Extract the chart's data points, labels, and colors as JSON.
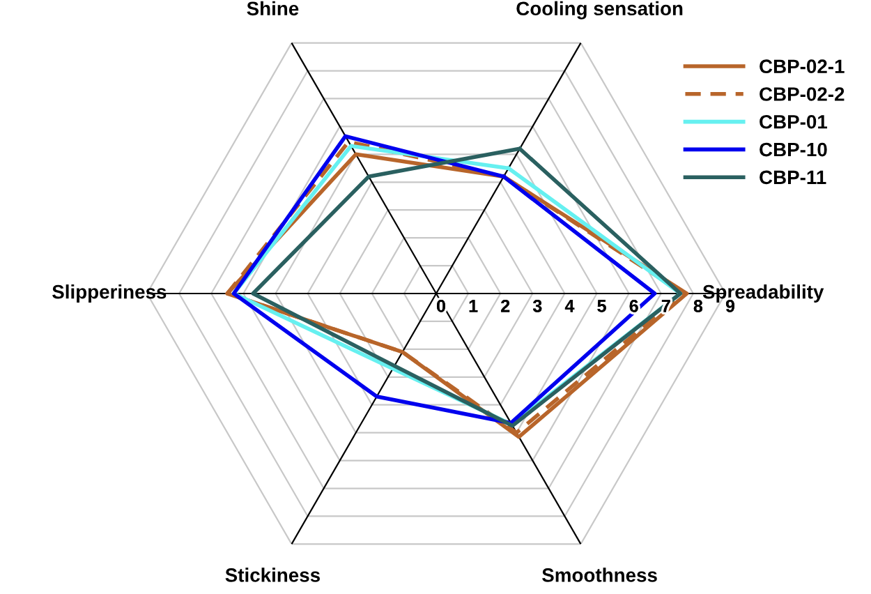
{
  "chart_data": {
    "type": "radar",
    "categories": [
      "Cooling sensation",
      "Spreadability",
      "Smoothness",
      "Stickiness",
      "Slipperiness",
      "Shine"
    ],
    "ylim": [
      0,
      9
    ],
    "yticks": [
      0,
      1,
      2,
      3,
      4,
      5,
      6,
      7,
      8,
      9
    ],
    "grid": true,
    "legend": "top right",
    "series": [
      {
        "name": "CBP-02-1",
        "color": "#b8652a",
        "line_style": "solid",
        "values": [
          4.2,
          7.8,
          5.15,
          2.1,
          6.5,
          5.0
        ]
      },
      {
        "name": "CBP-02-2",
        "color": "#b8652a",
        "line_style": "dashed",
        "values": [
          4.2,
          7.7,
          5.0,
          2.1,
          6.5,
          5.45
        ]
      },
      {
        "name": "CBP-01",
        "color": "#66f0f0",
        "line_style": "solid",
        "values": [
          4.5,
          7.6,
          4.7,
          2.7,
          6.3,
          5.3
        ]
      },
      {
        "name": "CBP-10",
        "color": "#0000ee",
        "line_style": "solid",
        "values": [
          4.2,
          6.8,
          4.65,
          3.7,
          6.3,
          5.65
        ]
      },
      {
        "name": "CBP-11",
        "color": "#2a6060",
        "line_style": "solid",
        "values": [
          5.2,
          7.6,
          4.75,
          2.6,
          5.7,
          4.2
        ]
      }
    ]
  }
}
